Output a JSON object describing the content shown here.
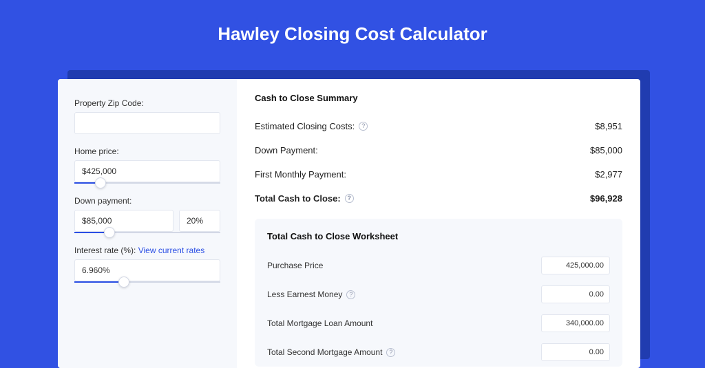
{
  "page": {
    "title": "Hawley Closing Cost Calculator",
    "bg_color": "#3151e3"
  },
  "form": {
    "zip": {
      "label": "Property Zip Code:",
      "value": ""
    },
    "home_price": {
      "label": "Home price:",
      "value": "$425,000",
      "slider_pct": 18
    },
    "down_payment": {
      "label": "Down payment:",
      "value": "$85,000",
      "pct": "20%",
      "slider_pct": 24
    },
    "interest_rate": {
      "label": "Interest rate (%):",
      "link_text": "View current rates",
      "value": "6.960%",
      "slider_pct": 34
    }
  },
  "summary": {
    "title": "Cash to Close Summary",
    "rows": [
      {
        "label": "Estimated Closing Costs:",
        "value": "$8,951",
        "help": true
      },
      {
        "label": "Down Payment:",
        "value": "$85,000",
        "help": false
      },
      {
        "label": "First Monthly Payment:",
        "value": "$2,977",
        "help": false
      }
    ],
    "total": {
      "label": "Total Cash to Close:",
      "value": "$96,928",
      "help": true
    }
  },
  "worksheet": {
    "title": "Total Cash to Close Worksheet",
    "rows": [
      {
        "label": "Purchase Price",
        "value": "425,000.00",
        "help": false
      },
      {
        "label": "Less Earnest Money",
        "value": "0.00",
        "help": true
      },
      {
        "label": "Total Mortgage Loan Amount",
        "value": "340,000.00",
        "help": false
      },
      {
        "label": "Total Second Mortgage Amount",
        "value": "0.00",
        "help": true
      }
    ]
  },
  "colors": {
    "accent": "#2a4ee4",
    "panel_bg": "#f6f8fc",
    "border": "#e2e6ef"
  }
}
